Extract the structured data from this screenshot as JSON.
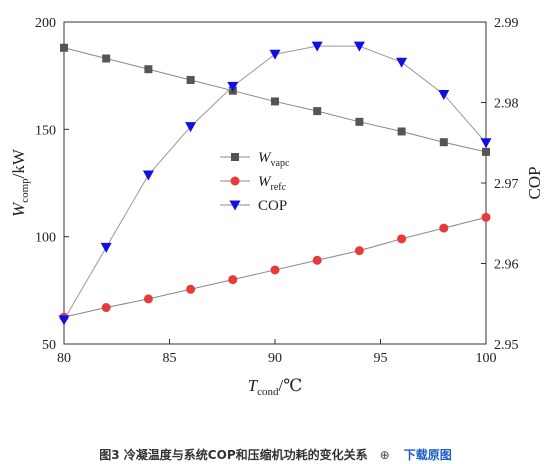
{
  "chart_data": {
    "type": "line",
    "x": [
      80,
      82,
      84,
      86,
      88,
      90,
      92,
      94,
      96,
      98,
      100
    ],
    "xlabel": {
      "main": "T",
      "sub": "cond",
      "suffix": "/℃"
    },
    "ylabel_left": {
      "main": "W",
      "sub": "comp",
      "suffix": "/kW"
    },
    "ylabel_right": "COP",
    "xlim": [
      80,
      100
    ],
    "ylim_left": [
      50,
      200
    ],
    "ylim_right": [
      2.95,
      2.99
    ],
    "xticks": [
      "80",
      "85",
      "90",
      "95",
      "100"
    ],
    "yticks_left": [
      "50",
      "100",
      "150",
      "200"
    ],
    "yticks_right": [
      "2.95",
      "2.96",
      "2.97",
      "2.98",
      "2.99"
    ],
    "grid": false,
    "legend_position": "center",
    "series": [
      {
        "name": "W",
        "name_sub": "vapc",
        "axis": "left",
        "marker": "square",
        "color": "#555555",
        "values": [
          188,
          183,
          178,
          173,
          168,
          163,
          158.5,
          153.5,
          149,
          144,
          139.5
        ]
      },
      {
        "name": "W",
        "name_sub": "refc",
        "axis": "left",
        "marker": "circle",
        "color": "#e8393b",
        "values": [
          62.5,
          67,
          71,
          75.5,
          80,
          84.5,
          89,
          93.5,
          99,
          104,
          109
        ]
      },
      {
        "name": "COP",
        "name_sub": "",
        "axis": "right",
        "marker": "triangle-down",
        "color": "#1010e0",
        "values": [
          2.953,
          2.962,
          2.971,
          2.977,
          2.982,
          2.986,
          2.987,
          2.987,
          2.985,
          2.981,
          2.975
        ]
      }
    ]
  },
  "caption": {
    "text": "图3 冷凝温度与系统COP和压缩机功耗的变化关系",
    "zoom_icon": "zoom-in-icon",
    "zoom_glyph": "⊕",
    "download": "下载原图"
  }
}
